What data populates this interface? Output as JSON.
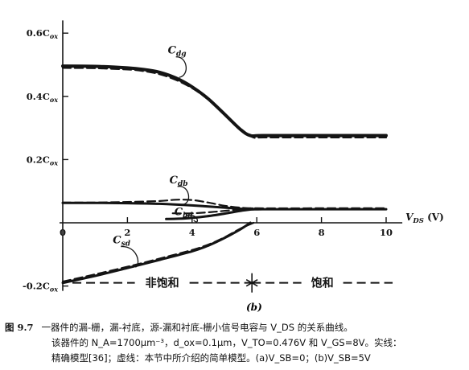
{
  "chart_data": {
    "type": "line",
    "panel_label": "(b)",
    "xlabel": "V_DS (V)",
    "xlim": [
      0,
      10.5
    ],
    "ylim": [
      -0.2,
      0.62
    ],
    "x_ticks": [
      0,
      2,
      4,
      6,
      8,
      10
    ],
    "x_tick_labels": [
      "0",
      "2",
      "4",
      "6",
      "8",
      "10"
    ],
    "y_ticks": [
      0.6,
      0.4,
      0.2,
      -0.2
    ],
    "y_tick_labels": [
      "0.6C_ox",
      "0.4C_ox",
      "0.2C_ox",
      "-0.2C_ox"
    ],
    "series": [
      {
        "name": "C_dg",
        "style": "solid",
        "x": [
          0,
          1,
          2,
          2.5,
          3,
          3.5,
          4,
          4.5,
          5,
          5.5,
          5.8,
          6.2,
          8,
          10
        ],
        "y": [
          0.496,
          0.495,
          0.49,
          0.485,
          0.476,
          0.458,
          0.43,
          0.392,
          0.344,
          0.295,
          0.276,
          0.276,
          0.276,
          0.276
        ]
      },
      {
        "name": "C_dg",
        "style": "dashed",
        "x": [
          0,
          1,
          2,
          2.5,
          3,
          3.5,
          4,
          4.5,
          5,
          5.5,
          5.9,
          6.2,
          8,
          10
        ],
        "y": [
          0.49,
          0.489,
          0.485,
          0.48,
          0.47,
          0.452,
          0.426,
          0.39,
          0.343,
          0.293,
          0.27,
          0.27,
          0.27,
          0.27
        ]
      },
      {
        "name": "C_db",
        "style": "solid",
        "x": [
          0,
          1,
          2,
          3,
          4,
          5,
          5.8,
          6.5,
          8,
          10
        ],
        "y": [
          0.063,
          0.063,
          0.062,
          0.06,
          0.055,
          0.048,
          0.043,
          0.043,
          0.043,
          0.043
        ]
      },
      {
        "name": "C_db",
        "style": "dashed",
        "x": [
          0,
          1,
          2,
          3,
          3.5,
          4,
          4.5,
          5,
          5.5,
          6,
          8,
          10
        ],
        "y": [
          0.064,
          0.064,
          0.066,
          0.069,
          0.073,
          0.072,
          0.064,
          0.054,
          0.048,
          0.046,
          0.046,
          0.046
        ]
      },
      {
        "name": "C_bd",
        "style": "solid",
        "x": [
          3.2,
          3.8,
          4.4,
          5,
          5.5,
          5.9
        ],
        "y": [
          0.012,
          0.014,
          0.02,
          0.029,
          0.038,
          0.043
        ]
      },
      {
        "name": "C_bd",
        "style": "dashed",
        "x": [
          3.4,
          4,
          4.6,
          5.2,
          5.7,
          6
        ],
        "y": [
          0.03,
          0.03,
          0.034,
          0.04,
          0.045,
          0.046
        ]
      },
      {
        "name": "C_sd",
        "style": "solid",
        "x": [
          0,
          1,
          2,
          3,
          4,
          4.5,
          5,
          5.5,
          5.8
        ],
        "y": [
          -0.19,
          -0.168,
          -0.143,
          -0.117,
          -0.09,
          -0.072,
          -0.048,
          -0.02,
          0
        ]
      },
      {
        "name": "C_sd",
        "style": "dashed",
        "x": [
          0,
          1,
          2,
          3,
          4,
          4.5,
          5,
          5.5,
          5.9
        ],
        "y": [
          -0.186,
          -0.163,
          -0.139,
          -0.113,
          -0.086,
          -0.069,
          -0.046,
          -0.018,
          0
        ]
      }
    ],
    "curve_labels": [
      {
        "text": "C_dg",
        "x": 3.25,
        "y": 0.535,
        "tx": 3.45,
        "ty": 0.47
      },
      {
        "text": "C_db",
        "x": 3.3,
        "y": 0.125,
        "tx": 3.55,
        "ty": 0.068
      },
      {
        "text": "C_bd",
        "x": 3.45,
        "y": 0.024,
        "tx": 3.9,
        "ty": 0.018
      },
      {
        "text": "C_sd",
        "x": 1.55,
        "y": -0.065,
        "tx": 2.1,
        "ty": -0.13
      }
    ],
    "regions": [
      {
        "label": "非饱和",
        "x_from": 0.3,
        "x_to": 5.85
      },
      {
        "label": "饱和",
        "x_from": 5.85,
        "x_to": 10.2
      }
    ],
    "region_y": -0.19,
    "boundary_x": 5.85
  },
  "caption": {
    "number": "图 9.7",
    "line1": "一器件的漏-栅，漏-衬底，源-漏和衬底-栅小信号电容与 V_DS 的关系曲线。",
    "line2": "该器件的 N_A=1700μm⁻³，d_ox=0.1μm，V_TO=0.476V 和 V_GS=8V。实线：",
    "line3": "精确模型[36]；虚线：本节中所介绍的简单模型。(a)V_SB=0；(b)V_SB=5V"
  }
}
